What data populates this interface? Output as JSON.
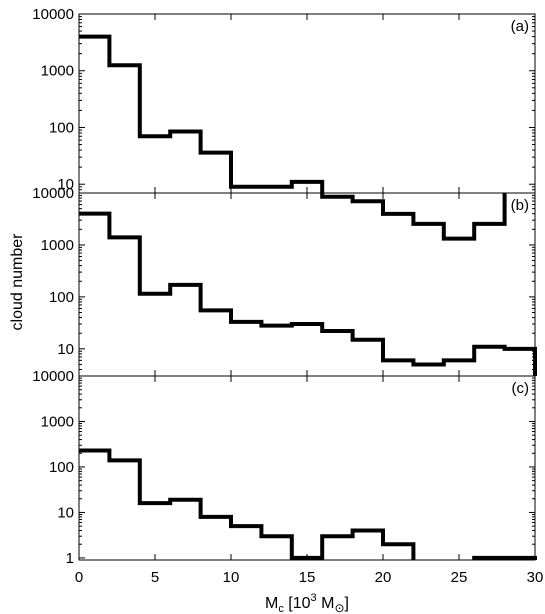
{
  "chart_data": {
    "type": "step-histogram",
    "xlabel": {
      "main": "M",
      "sub": "c",
      "unit_open": " [10",
      "unit_exp": "3",
      "unit_mid": " M",
      "unit_close": "]"
    },
    "ylabel": "cloud number",
    "xlim": [
      0,
      30
    ],
    "x_ticks": [
      0,
      5,
      10,
      15,
      20,
      25,
      30
    ],
    "y_scale": "log",
    "bin_edges": [
      0,
      2,
      4,
      6,
      8,
      10,
      12,
      14,
      16,
      18,
      20,
      22,
      24,
      26,
      28,
      30
    ],
    "panels": [
      {
        "label": "(a)",
        "ylim": [
          7,
          10000
        ],
        "y_ticks": [
          10,
          100,
          1000,
          10000
        ],
        "y_tick_labels": [
          "10",
          "100",
          "1000",
          "10000"
        ],
        "values": [
          4000,
          1250,
          70,
          85,
          36,
          9,
          9,
          11,
          6,
          5,
          3,
          2,
          1.1,
          2,
          null
        ]
      },
      {
        "label": "(b)",
        "ylim": [
          3,
          10000
        ],
        "y_ticks": [
          10,
          100,
          1000,
          10000
        ],
        "y_tick_labels": [
          "10",
          "100",
          "1000",
          "10000"
        ],
        "values": [
          4000,
          1400,
          115,
          170,
          55,
          33,
          28,
          30,
          22,
          15,
          6,
          5,
          6,
          11,
          10
        ]
      },
      {
        "label": "(c)",
        "ylim": [
          0.9,
          10000
        ],
        "y_ticks": [
          1,
          10,
          100,
          1000,
          10000
        ],
        "y_tick_labels": [
          "1",
          "10",
          "100",
          "1000",
          "10000"
        ],
        "values": [
          230,
          140,
          16,
          19,
          8,
          5,
          3,
          1,
          3,
          4,
          2,
          null,
          null,
          1,
          1
        ]
      }
    ]
  }
}
